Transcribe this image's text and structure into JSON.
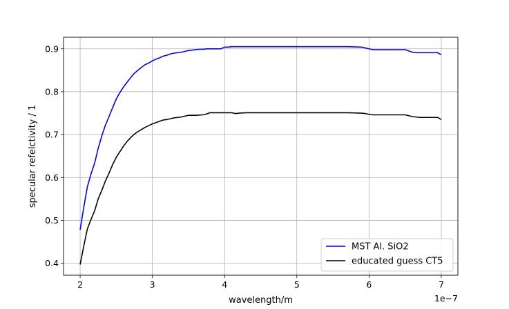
{
  "chart_data": {
    "type": "line",
    "xlabel": "wavelength/m",
    "ylabel": "specular refelctivity / 1",
    "x_offset_text": "1e−7",
    "xlim": [
      1.77e-07,
      7.23e-07
    ],
    "ylim": [
      0.372,
      0.927
    ],
    "xticks": [
      2e-07,
      3e-07,
      4e-07,
      5e-07,
      6e-07,
      7e-07
    ],
    "xtick_labels": [
      "2",
      "3",
      "4",
      "5",
      "6",
      "7"
    ],
    "yticks": [
      0.4,
      0.5,
      0.6,
      0.7,
      0.8,
      0.9
    ],
    "ytick_labels": [
      "0.4",
      "0.5",
      "0.6",
      "0.7",
      "0.8",
      "0.9"
    ],
    "grid": true,
    "legend_position": "lower-right",
    "series": [
      {
        "name": "MST Al. SiO2",
        "color": "#0000ff",
        "x": [
          2e-07,
          2.05e-07,
          2.1e-07,
          2.15e-07,
          2.2e-07,
          2.25e-07,
          2.3e-07,
          2.35e-07,
          2.4e-07,
          2.45e-07,
          2.5e-07,
          2.55e-07,
          2.6e-07,
          2.65e-07,
          2.7e-07,
          2.75e-07,
          2.8e-07,
          2.85e-07,
          2.9e-07,
          2.95e-07,
          3e-07,
          3.05e-07,
          3.1e-07,
          3.15e-07,
          3.2e-07,
          3.25e-07,
          3.3e-07,
          3.35e-07,
          3.4e-07,
          3.45e-07,
          3.5e-07,
          3.55e-07,
          3.6e-07,
          3.65e-07,
          3.7e-07,
          3.75e-07,
          3.8e-07,
          3.85e-07,
          3.9e-07,
          3.95e-07,
          4e-07,
          4.05e-07,
          4.1e-07,
          4.15e-07,
          4.2e-07,
          4.3e-07,
          4.5e-07,
          5e-07,
          5.5e-07,
          5.7e-07,
          5.9e-07,
          5.95e-07,
          6e-07,
          6.05e-07,
          6.1e-07,
          6.2e-07,
          6.5e-07,
          6.55e-07,
          6.6e-07,
          6.65e-07,
          6.7e-07,
          6.8e-07,
          6.95e-07,
          7e-07
        ],
        "y": [
          0.478,
          0.53,
          0.578,
          0.608,
          0.633,
          0.668,
          0.697,
          0.722,
          0.742,
          0.763,
          0.783,
          0.798,
          0.811,
          0.822,
          0.833,
          0.843,
          0.85,
          0.857,
          0.863,
          0.867,
          0.872,
          0.876,
          0.879,
          0.883,
          0.885,
          0.888,
          0.89,
          0.891,
          0.892,
          0.894,
          0.896,
          0.897,
          0.898,
          0.899,
          0.899,
          0.9,
          0.9,
          0.9,
          0.9,
          0.9,
          0.904,
          0.904,
          0.905,
          0.905,
          0.905,
          0.905,
          0.905,
          0.905,
          0.905,
          0.905,
          0.904,
          0.902,
          0.9,
          0.898,
          0.898,
          0.898,
          0.898,
          0.895,
          0.892,
          0.891,
          0.891,
          0.891,
          0.891,
          0.886
        ]
      },
      {
        "name": "educated guess CT5",
        "color": "#000000",
        "x": [
          2e-07,
          2.05e-07,
          2.1e-07,
          2.15e-07,
          2.2e-07,
          2.25e-07,
          2.3e-07,
          2.35e-07,
          2.4e-07,
          2.45e-07,
          2.5e-07,
          2.55e-07,
          2.6e-07,
          2.65e-07,
          2.7e-07,
          2.75e-07,
          2.8e-07,
          2.85e-07,
          2.9e-07,
          2.95e-07,
          3e-07,
          3.05e-07,
          3.1e-07,
          3.15e-07,
          3.2e-07,
          3.25e-07,
          3.3e-07,
          3.35e-07,
          3.4e-07,
          3.45e-07,
          3.5e-07,
          3.6e-07,
          3.7e-07,
          3.75e-07,
          3.8e-07,
          4e-07,
          4.1e-07,
          4.15e-07,
          4.2e-07,
          4.3e-07,
          4.5e-07,
          5e-07,
          5.5e-07,
          5.7e-07,
          5.9e-07,
          5.95e-07,
          6e-07,
          6.05e-07,
          6.1e-07,
          6.2e-07,
          6.5e-07,
          6.55e-07,
          6.6e-07,
          6.65e-07,
          6.7e-07,
          6.8e-07,
          6.95e-07,
          7e-07
        ],
        "y": [
          0.397,
          0.44,
          0.48,
          0.502,
          0.522,
          0.55,
          0.57,
          0.592,
          0.61,
          0.63,
          0.647,
          0.66,
          0.673,
          0.684,
          0.693,
          0.701,
          0.707,
          0.712,
          0.717,
          0.721,
          0.725,
          0.728,
          0.731,
          0.734,
          0.735,
          0.737,
          0.739,
          0.74,
          0.741,
          0.743,
          0.745,
          0.745,
          0.746,
          0.748,
          0.751,
          0.751,
          0.751,
          0.749,
          0.75,
          0.751,
          0.751,
          0.751,
          0.751,
          0.751,
          0.75,
          0.749,
          0.747,
          0.746,
          0.746,
          0.746,
          0.746,
          0.744,
          0.742,
          0.741,
          0.74,
          0.74,
          0.74,
          0.735
        ]
      }
    ]
  }
}
